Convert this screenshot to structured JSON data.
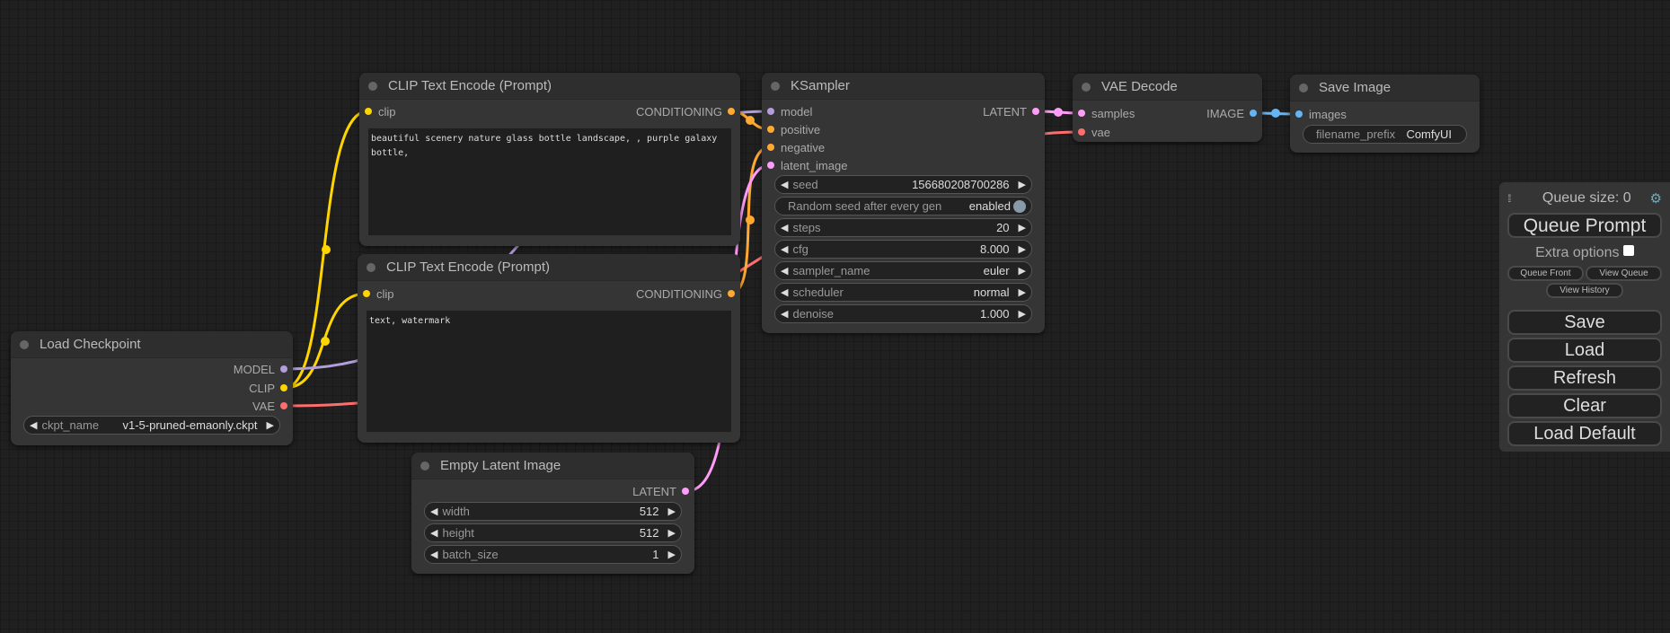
{
  "nodes": {
    "load_checkpoint": {
      "title": "Load Checkpoint",
      "outputs": [
        "MODEL",
        "CLIP",
        "VAE"
      ],
      "widget": {
        "label": "ckpt_name",
        "value": "v1-5-pruned-emaonly.ckpt"
      }
    },
    "clip_pos": {
      "title": "CLIP Text Encode (Prompt)",
      "input": "clip",
      "output": "CONDITIONING",
      "text": "beautiful scenery nature glass bottle landscape, , purple galaxy bottle,"
    },
    "clip_neg": {
      "title": "CLIP Text Encode (Prompt)",
      "input": "clip",
      "output": "CONDITIONING",
      "text": "text, watermark"
    },
    "empty_latent": {
      "title": "Empty Latent Image",
      "output": "LATENT",
      "widgets": [
        {
          "label": "width",
          "value": "512"
        },
        {
          "label": "height",
          "value": "512"
        },
        {
          "label": "batch_size",
          "value": "1"
        }
      ]
    },
    "ksampler": {
      "title": "KSampler",
      "inputs": [
        "model",
        "positive",
        "negative",
        "latent_image"
      ],
      "output": "LATENT",
      "widgets": [
        {
          "label": "seed",
          "value": "156680208700286"
        },
        {
          "label": "Random seed after every gen",
          "value": "enabled"
        },
        {
          "label": "steps",
          "value": "20"
        },
        {
          "label": "cfg",
          "value": "8.000"
        },
        {
          "label": "sampler_name",
          "value": "euler"
        },
        {
          "label": "scheduler",
          "value": "normal"
        },
        {
          "label": "denoise",
          "value": "1.000"
        }
      ]
    },
    "vae_decode": {
      "title": "VAE Decode",
      "inputs": [
        "samples",
        "vae"
      ],
      "output": "IMAGE"
    },
    "save_image": {
      "title": "Save Image",
      "input": "images",
      "widget": {
        "label": "filename_prefix",
        "value": "ComfyUI"
      }
    }
  },
  "panel": {
    "queue_size": "Queue size: 0",
    "queue_prompt": "Queue Prompt",
    "extra_options": "Extra options",
    "queue_front": "Queue Front",
    "view_queue": "View Queue",
    "view_history": "View History",
    "save": "Save",
    "load": "Load",
    "refresh": "Refresh",
    "clear": "Clear",
    "load_default": "Load Default"
  },
  "colors": {
    "model": "#b39ddb",
    "clip": "#ffd500",
    "vae": "#ff6e6e",
    "conditioning": "#ffa931",
    "latent": "#ff9cf9",
    "image": "#64b5f6"
  },
  "icons": {
    "settings": "gear-icon",
    "drag": "drag-handle-icon"
  }
}
